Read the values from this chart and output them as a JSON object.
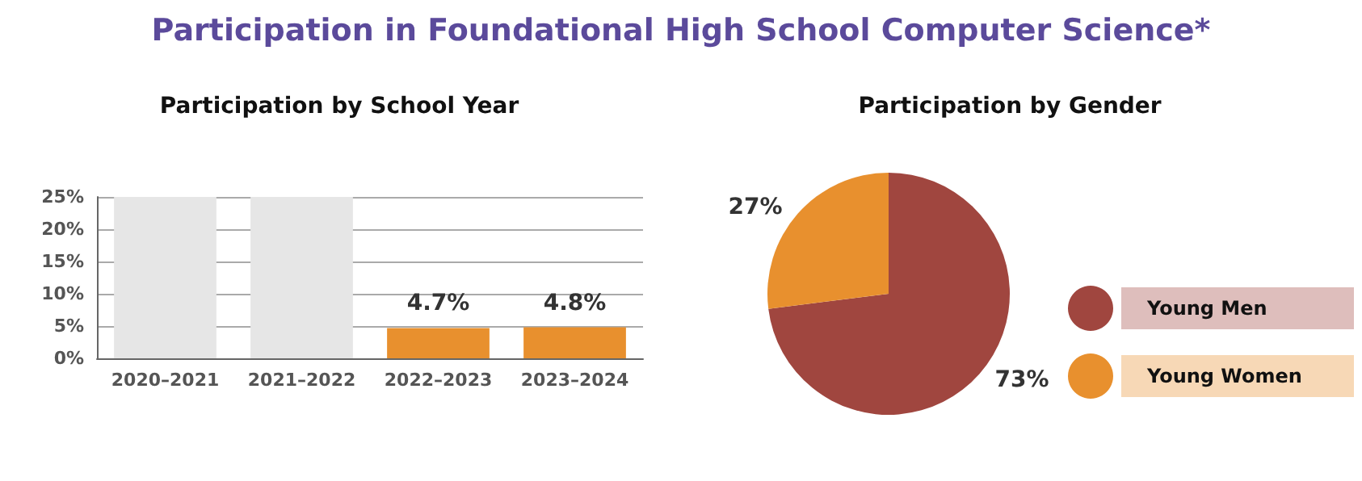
{
  "chart_data": [
    {
      "type": "bar",
      "title": "Participation in Foundational High School Computer Science*",
      "subtitle": "Participation by School Year",
      "categories": [
        "2020–2021",
        "2021–2022",
        "2022–2023",
        "2023–2024"
      ],
      "values": [
        null,
        null,
        4.7,
        4.8
      ],
      "color": "#e8902e",
      "value_labels": [
        null,
        null,
        "4.7%",
        "4.8%"
      ],
      "ylim": [
        0,
        25
      ],
      "yticks": [
        {
          "value": 0,
          "label": "0%"
        },
        {
          "value": 5,
          "label": "5%"
        },
        {
          "value": 10,
          "label": "10%"
        },
        {
          "value": 15,
          "label": "15%"
        },
        {
          "value": 20,
          "label": "20%"
        },
        {
          "value": 25,
          "label": "25%"
        }
      ],
      "grid": "y",
      "bands": [
        {
          "axis": "x",
          "from": "2020–2021",
          "to": "2020–2021",
          "color": "#e6e6e6"
        },
        {
          "axis": "x",
          "from": "2021–2022",
          "to": "2021–2022",
          "color": "#e6e6e6"
        }
      ]
    },
    {
      "type": "pie",
      "title": "Participation by Gender",
      "categories": [
        "Young Men",
        "Young Women"
      ],
      "values": [
        73,
        27
      ],
      "colors": [
        "#a0463f",
        "#e8902e"
      ],
      "value_labels": [
        "73%",
        "27%"
      ],
      "legend": "right"
    }
  ]
}
